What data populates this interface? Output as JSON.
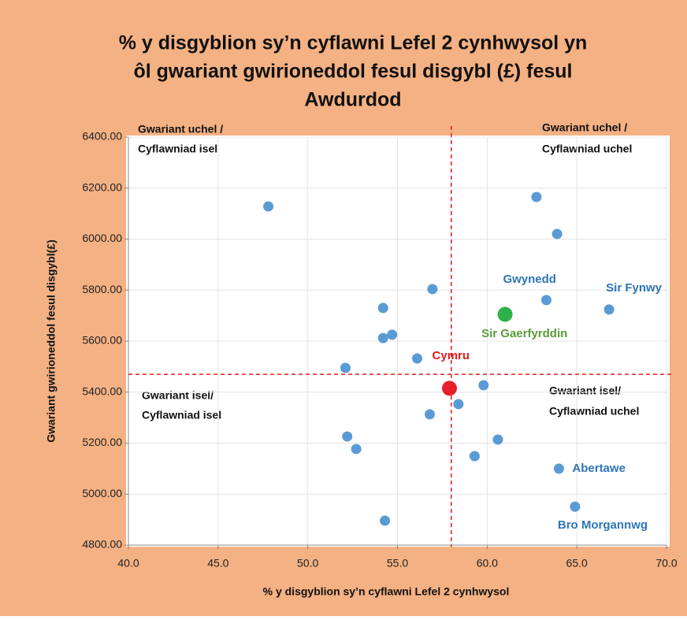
{
  "chart_data": {
    "type": "scatter",
    "title_lines": [
      "% y disgyblion sy’n cyflawni Lefel 2 cynhwysol yn",
      "ôl gwariant gwirioneddol fesul disgybl (£) fesul",
      "Awdurdod"
    ],
    "x_label": "% y disgyblion  sy’n  cyflawni  Lefel 2 cynhwysol",
    "y_label": "Gwariant  gwirioneddol  fesul disgybl(£)",
    "xlim": [
      40,
      70
    ],
    "xticks": [
      {
        "value": 40,
        "label": "40.0"
      },
      {
        "value": 45,
        "label": "45.0"
      },
      {
        "value": 50,
        "label": "50.0"
      },
      {
        "value": 55,
        "label": "55.0"
      },
      {
        "value": 60,
        "label": "60.0"
      },
      {
        "value": 65,
        "label": "65.0"
      },
      {
        "value": 70,
        "label": "70.0"
      }
    ],
    "ylim": [
      4800,
      6400
    ],
    "yticks": [
      {
        "value": 4800,
        "label": "4800.00"
      },
      {
        "value": 5000,
        "label": "5000.00"
      },
      {
        "value": 5200,
        "label": "5200.00"
      },
      {
        "value": 5400,
        "label": "5400.00"
      },
      {
        "value": 5600,
        "label": "5600.00"
      },
      {
        "value": 5800,
        "label": "5800.00"
      },
      {
        "value": 6000,
        "label": "6000.00"
      },
      {
        "value": 6200,
        "label": "6200.00"
      },
      {
        "value": 6400,
        "label": "6400.00"
      }
    ],
    "grid": true,
    "reference_lines": {
      "x": 58.0,
      "y": 5470,
      "color": "#e31a1c"
    },
    "quadrant_labels": [
      [
        "Gwariant uchel  /",
        "Cyflawniad isel"
      ],
      [
        "Gwariant uchel  /",
        "Cyflawniad uchel"
      ],
      [
        "Gwariant isel/",
        "Cyflawniad isel"
      ],
      [
        "Gwariant isel/",
        "Cyflawniad uchel"
      ]
    ],
    "series": [
      {
        "color": "#5b9bd5",
        "label_color": "#2e75b6",
        "x": [
          47.8,
          62.75,
          63.9,
          56.95,
          63.3,
          66.8,
          54.2,
          54.2,
          54.7,
          56.1,
          52.1,
          59.8,
          58.4,
          56.8,
          52.2,
          52.7,
          60.6,
          59.3,
          64.0,
          64.9,
          54.3
        ],
        "values": [
          6128,
          6165,
          6020,
          5804,
          5761,
          5724,
          5730,
          5612,
          5625,
          5532,
          5495,
          5427,
          5353,
          5313,
          5226,
          5177,
          5214,
          5149,
          5100,
          4951,
          4896
        ],
        "point_labels": [
          null,
          null,
          null,
          null,
          "Gwynedd",
          "Sir Fynwy",
          null,
          null,
          null,
          null,
          null,
          null,
          null,
          null,
          null,
          null,
          null,
          null,
          "Abertawe",
          "Bro Morgannwg",
          null
        ]
      },
      {
        "color": "#2db24a",
        "label_color": "#5a9a3a",
        "x": [
          61.0
        ],
        "values": [
          5705
        ],
        "point_labels": [
          "Sir Gaerfyrddin"
        ]
      },
      {
        "color": "#e8202a",
        "label_color": "#e31a1c",
        "x": [
          57.9
        ],
        "values": [
          5415
        ],
        "point_labels": [
          "Cymru"
        ]
      }
    ]
  }
}
